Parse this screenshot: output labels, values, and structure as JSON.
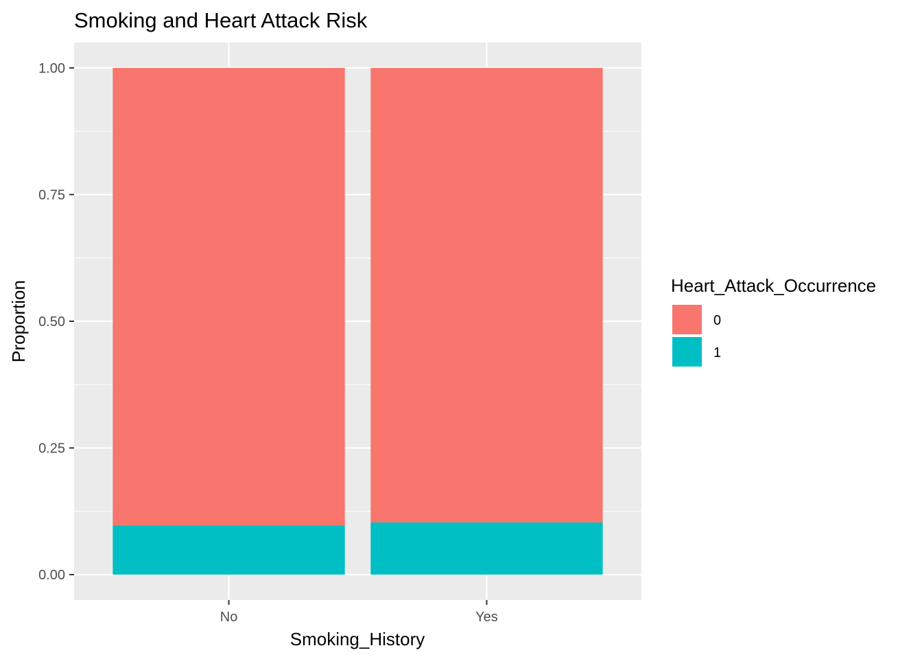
{
  "chart_data": {
    "type": "bar",
    "stacked": true,
    "title": "Smoking and Heart Attack Risk",
    "xlabel": "Smoking_History",
    "ylabel": "Proportion",
    "categories": [
      "No",
      "Yes"
    ],
    "ylim": [
      -0.05,
      1.05
    ],
    "yticks": [
      0,
      0.25,
      0.5,
      0.75,
      1
    ],
    "ytick_labels": [
      "0.00",
      "0.25",
      "0.50",
      "0.75",
      "1.00"
    ],
    "grid": true,
    "legend": {
      "title": "Heart_Attack_Occurrence",
      "placement": "right"
    },
    "series": [
      {
        "name": "0",
        "color": "#F8766D",
        "values": [
          0.903,
          0.897
        ]
      },
      {
        "name": "1",
        "color": "#00BFC4",
        "values": [
          0.097,
          0.103
        ]
      }
    ]
  }
}
